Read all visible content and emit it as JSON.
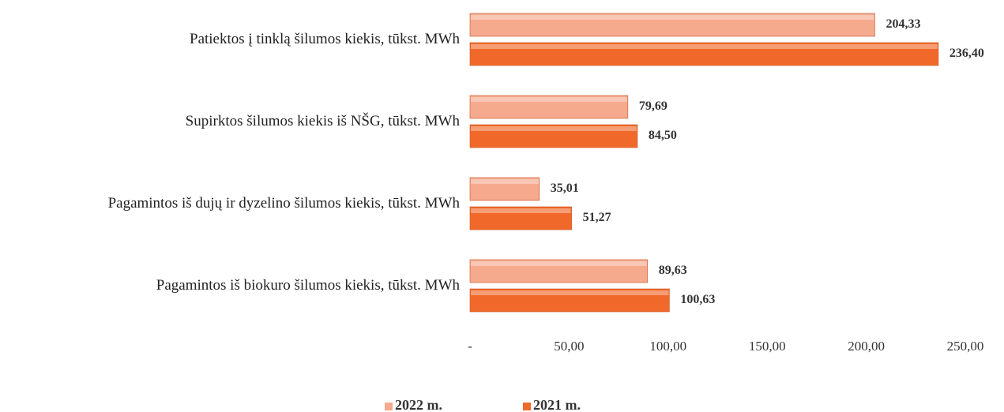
{
  "chart_data": {
    "type": "bar",
    "orientation": "horizontal",
    "categories": [
      "Patiektos į tinklą šilumos kiekis, tūkst. MWh",
      "Supirktos šilumos kiekis iš NŠG, tūkst. MWh",
      "Pagamintos iš dujų ir dyzelino šilumos kiekis, tūkst. MWh",
      "Pagamintos iš biokuro šilumos kiekis, tūkst. MWh"
    ],
    "series": [
      {
        "name": "2022 m.",
        "color": "#f5aa8e",
        "values": [
          204.33,
          79.69,
          35.01,
          89.63
        ],
        "value_labels": [
          "204,33",
          "79,69",
          "35,01",
          "89,63"
        ]
      },
      {
        "name": "2021 m.",
        "color": "#f0692a",
        "values": [
          236.4,
          84.5,
          51.27,
          100.63
        ],
        "value_labels": [
          "236,40",
          "84,50",
          "51,27",
          "100,63"
        ]
      }
    ],
    "xlim": [
      0,
      250
    ],
    "xticks": [
      {
        "value": 0,
        "label": "-"
      },
      {
        "value": 50,
        "label": "50,00"
      },
      {
        "value": 100,
        "label": "100,00"
      },
      {
        "value": 150,
        "label": "150,00"
      },
      {
        "value": 200,
        "label": "200,00"
      },
      {
        "value": 250,
        "label": "250,00"
      }
    ],
    "legend": "bottom"
  }
}
